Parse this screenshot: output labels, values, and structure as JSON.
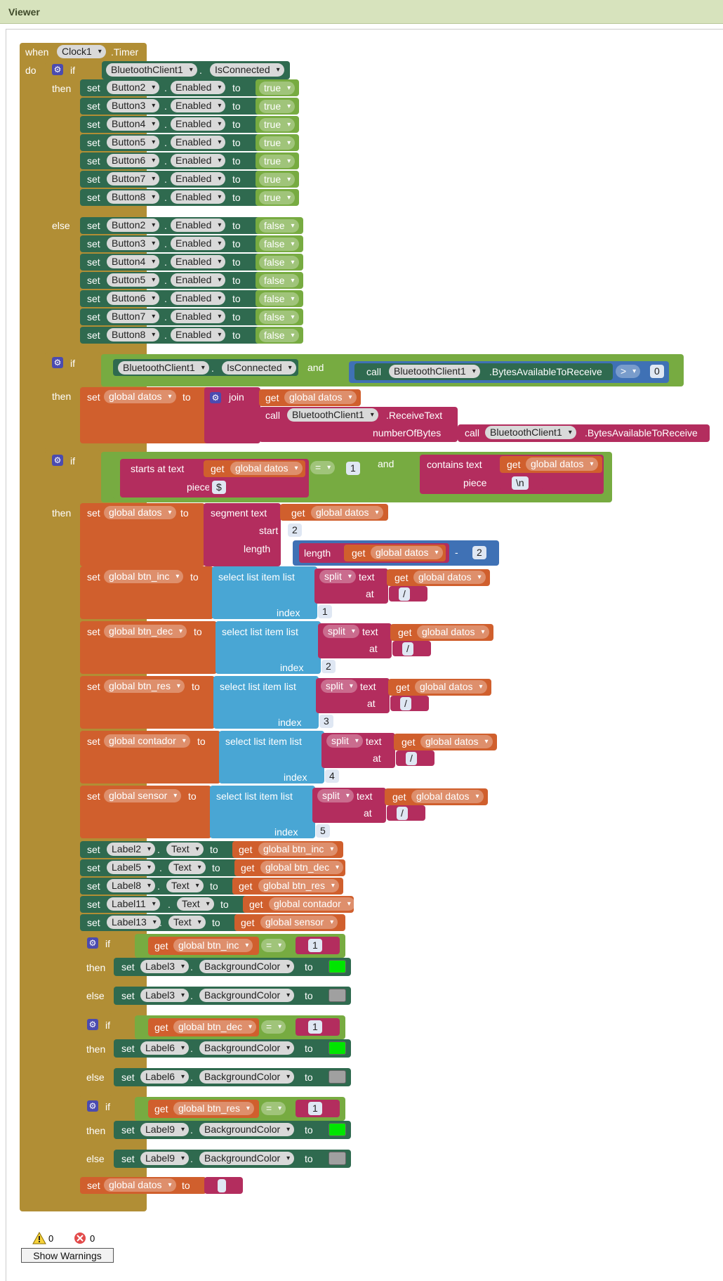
{
  "viewer": {
    "title": "Viewer"
  },
  "event": {
    "when": "when",
    "component": "Clock1",
    "event_name": ".Timer",
    "do": "do"
  },
  "kw": {
    "if": "if",
    "then": "then",
    "else": "else",
    "set": "set",
    "to": "to",
    "call": "call",
    "get": "get",
    "dot": ".",
    "and": "and",
    "join": "join",
    "numberOfBytes": "numberOfBytes",
    "starts_at": "starts at  text",
    "piece": "piece",
    "contains": "contains  text",
    "segment": "segment  text",
    "start": "start",
    "length": "length",
    "length_fn": "length",
    "select_list": "select list item  list",
    "index": "index",
    "split": "split",
    "text": "text",
    "at": "at",
    "equals": "=",
    "gt": ">",
    "minus": "-"
  },
  "if1": {
    "component": "BluetoothClient1",
    "property": "IsConnected",
    "then_rows": [
      {
        "comp": "Button2",
        "prop": "Enabled",
        "val": "true"
      },
      {
        "comp": "Button3",
        "prop": "Enabled",
        "val": "true"
      },
      {
        "comp": "Button4",
        "prop": "Enabled",
        "val": "true"
      },
      {
        "comp": "Button5",
        "prop": "Enabled",
        "val": "true"
      },
      {
        "comp": "Button6",
        "prop": "Enabled",
        "val": "true"
      },
      {
        "comp": "Button7",
        "prop": "Enabled",
        "val": "true"
      },
      {
        "comp": "Button8",
        "prop": "Enabled",
        "val": "true"
      }
    ],
    "else_rows": [
      {
        "comp": "Button2",
        "prop": "Enabled",
        "val": "false"
      },
      {
        "comp": "Button3",
        "prop": "Enabled",
        "val": "false"
      },
      {
        "comp": "Button4",
        "prop": "Enabled",
        "val": "false"
      },
      {
        "comp": "Button5",
        "prop": "Enabled",
        "val": "false"
      },
      {
        "comp": "Button6",
        "prop": "Enabled",
        "val": "false"
      },
      {
        "comp": "Button7",
        "prop": "Enabled",
        "val": "false"
      },
      {
        "comp": "Button8",
        "prop": "Enabled",
        "val": "false"
      }
    ]
  },
  "if2": {
    "component": "BluetoothClient1",
    "property": "IsConnected",
    "method": ".BytesAvailableToReceive",
    "compare": "0",
    "var": "global datos",
    "receive": ".ReceiveText"
  },
  "if3": {
    "var": "global datos",
    "piece1": "$",
    "num1": "1",
    "piece2": "\\n",
    "start": "2",
    "minus_n": "2",
    "selects": [
      {
        "var": "global btn_inc",
        "index": "1",
        "sep": "/"
      },
      {
        "var": "global btn_dec",
        "index": "2",
        "sep": "/"
      },
      {
        "var": "global btn_res",
        "index": "3",
        "sep": "/"
      },
      {
        "var": "global contador",
        "index": "4",
        "sep": "/"
      },
      {
        "var": "global sensor",
        "index": "5",
        "sep": "/"
      }
    ],
    "labels": [
      {
        "comp": "Label2",
        "prop": "Text",
        "var": "global btn_inc"
      },
      {
        "comp": "Label5",
        "prop": "Text",
        "var": "global btn_dec"
      },
      {
        "comp": "Label8",
        "prop": "Text",
        "var": "global btn_res"
      },
      {
        "comp": "Label11",
        "prop": "Text",
        "var": "global contador"
      },
      {
        "comp": "Label13",
        "prop": "Text",
        "var": "global sensor"
      }
    ],
    "color_ifs": [
      {
        "var": "global btn_inc",
        "eq": "1",
        "comp": "Label3",
        "prop": "BackgroundColor"
      },
      {
        "var": "global btn_dec",
        "eq": "1",
        "comp": "Label6",
        "prop": "BackgroundColor"
      },
      {
        "var": "global btn_res",
        "eq": "1",
        "comp": "Label9",
        "prop": "BackgroundColor"
      }
    ],
    "final_var": "global datos",
    "final_val": " "
  },
  "colors": {
    "on": "#00e600",
    "off": "#a0a0a0"
  },
  "warnings": {
    "warn_count": "0",
    "error_count": "0",
    "button": "Show Warnings"
  }
}
